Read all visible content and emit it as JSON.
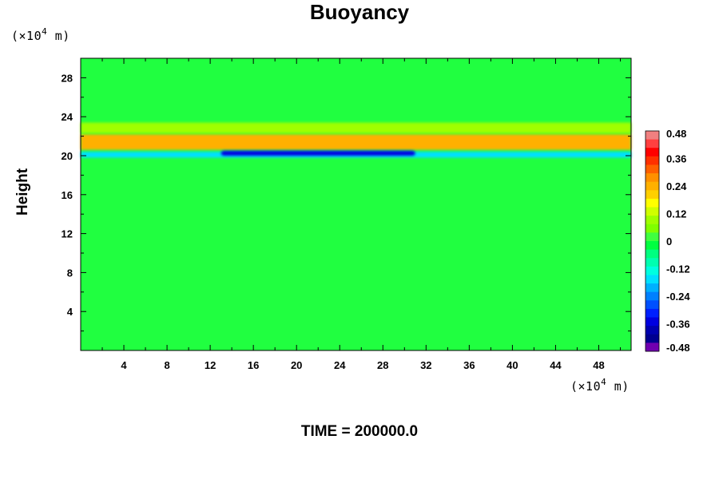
{
  "chart_data": {
    "type": "heatmap",
    "title": "Buoyancy",
    "ylabel": "Height",
    "x_unit": "(×10",
    "x_unit_exp": "4",
    "x_unit_tail": " m)",
    "y_unit": "(×10",
    "y_unit_exp": "4",
    "y_unit_tail": " m)",
    "footer": "TIME = 200000.0",
    "xlim": [
      0,
      51
    ],
    "ylim": [
      0,
      30
    ],
    "x_ticks": [
      4,
      8,
      12,
      16,
      20,
      24,
      28,
      32,
      36,
      40,
      44,
      48
    ],
    "y_ticks": [
      4,
      8,
      12,
      16,
      20,
      24,
      28
    ],
    "colorbar": {
      "range": [
        -0.48,
        0.48
      ],
      "tick_values": [
        0.48,
        0.36,
        0.24,
        0.12,
        0,
        -0.12,
        -0.24,
        -0.36,
        -0.48
      ],
      "tick_labels": [
        "0.48",
        "0.36",
        "0.24",
        "0.12",
        "0",
        "-0.12",
        "-0.24",
        "-0.36",
        "-0.48"
      ],
      "colors_top_to_bottom": [
        "#f08080",
        "#ff4040",
        "#ff0000",
        "#ff3000",
        "#ff6000",
        "#ff9000",
        "#ffb000",
        "#ffd000",
        "#ffff00",
        "#d0ff00",
        "#a0ff00",
        "#80ff00",
        "#40ff40",
        "#00ff40",
        "#00ff80",
        "#00ffb0",
        "#00ffe0",
        "#00e0ff",
        "#00b0ff",
        "#0080ff",
        "#0050ff",
        "#0020ff",
        "#0000e0",
        "#0000b0",
        "#000090",
        "#7000b0"
      ]
    },
    "background_color": "#20ff40",
    "features": [
      {
        "name": "positive layer",
        "x": [
          0,
          51
        ],
        "y": [
          20.6,
          22.2
        ],
        "value": 0.24
      },
      {
        "name": "negative layer",
        "x": [
          0,
          51
        ],
        "y": [
          19.8,
          20.4
        ],
        "value": -0.18
      },
      {
        "name": "negative core",
        "x": [
          13,
          31
        ],
        "y": [
          20.0,
          20.5
        ],
        "value": -0.36
      },
      {
        "name": "upper band",
        "x": [
          0,
          51
        ],
        "y": [
          22.3,
          23.4
        ],
        "value": 0.08
      }
    ]
  }
}
